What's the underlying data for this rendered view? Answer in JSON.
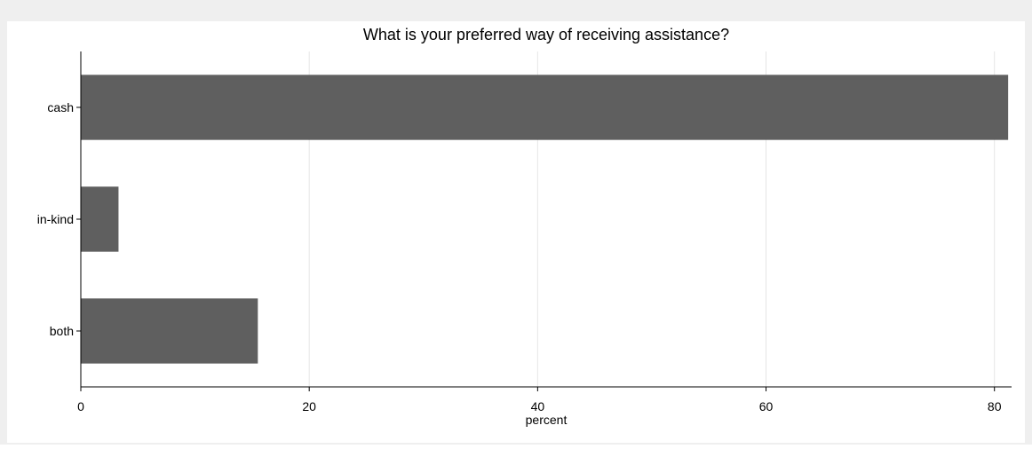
{
  "chart_data": {
    "type": "bar",
    "orientation": "horizontal",
    "title": "What is your preferred way of receiving assistance?",
    "xlabel": "percent",
    "ylabel": "",
    "categories": [
      "cash",
      "in-kind",
      "both"
    ],
    "values": [
      81.2,
      3.3,
      15.5
    ],
    "xlim": [
      0,
      81.5
    ],
    "xticks": [
      0,
      20,
      40,
      60,
      80
    ],
    "grid": true,
    "legend": "none",
    "colors": {
      "bar": "#5f5f5f",
      "background": "#efefef",
      "plot_background": "#ffffff",
      "grid": "#e6e6e6",
      "axis": "#000000",
      "text": "#000000"
    }
  }
}
